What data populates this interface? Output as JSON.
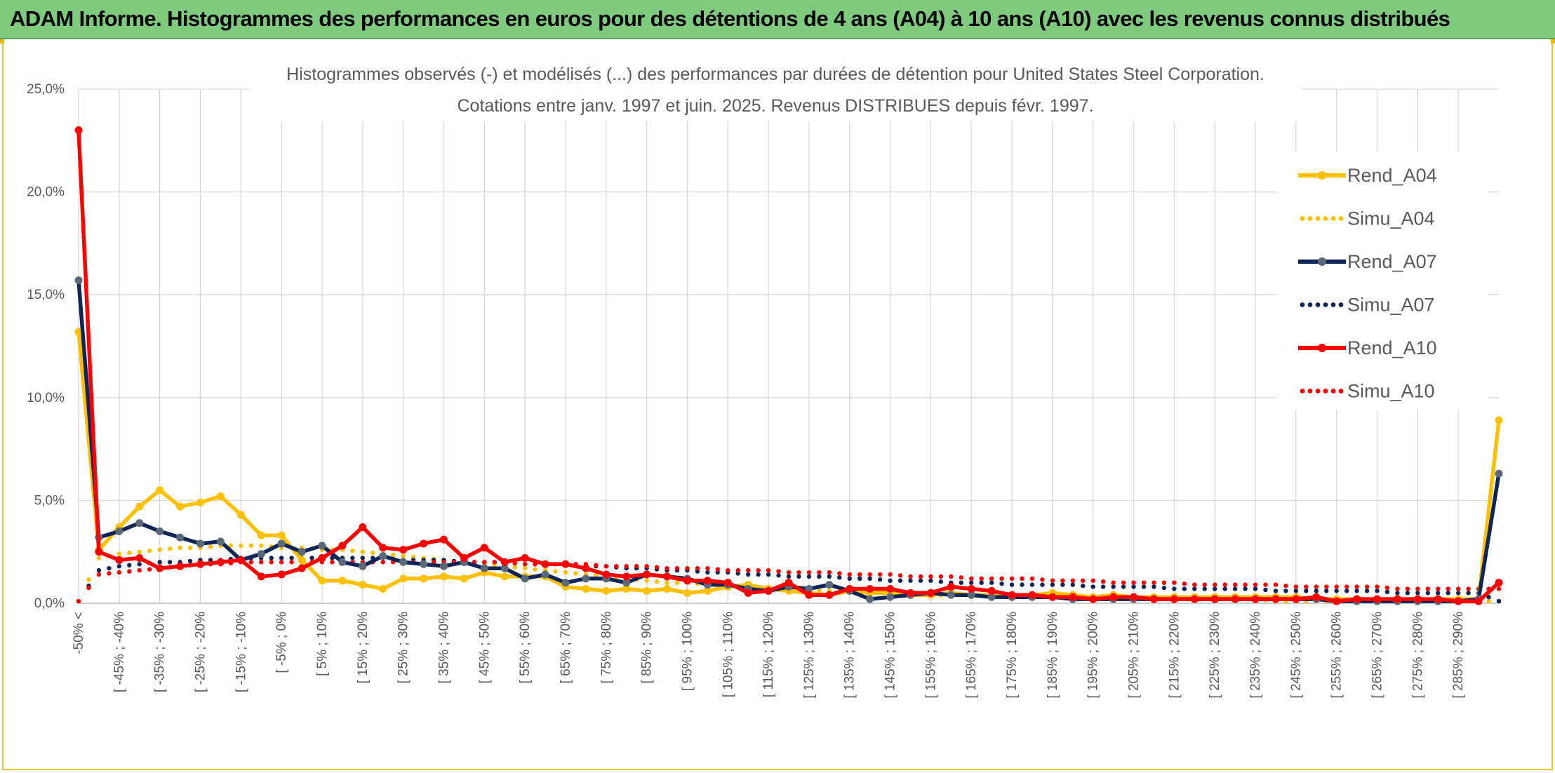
{
  "banner": {
    "title": "ADAM Informe. Histogrammes des performances en euros pour des détentions de 4 ans (A04) à 10 ans (A10) avec les revenus connus distribués"
  },
  "colors": {
    "banner": "#7ecb7e",
    "A04": "#ffc000",
    "A07": "#0f2557",
    "A07_marker": "#5a6877",
    "A10": "#ff0000",
    "grid": "#d9d9d9",
    "frame": "#f2c230"
  },
  "chart_data": {
    "type": "line",
    "title_lines": [
      "Histogrammes observés (-) et modélisés (...) des performances par durées de détention pour United States Steel Corporation.",
      "Cotations entre janv. 1997 et juin. 2025. Revenus DISTRIBUES depuis févr. 1997."
    ],
    "ylim": [
      0,
      25
    ],
    "y_ticks": [
      {
        "value": 0,
        "label": "0,0%"
      },
      {
        "value": 5,
        "label": "5,0%"
      },
      {
        "value": 10,
        "label": "10,0%"
      },
      {
        "value": 15,
        "label": "15,0%"
      },
      {
        "value": 20,
        "label": "20,0%"
      },
      {
        "value": 25,
        "label": "25,0%"
      }
    ],
    "grid": true,
    "legend_position": "right",
    "x_tick_labels": [
      "-50% <",
      "[ -45% ; -40%",
      "[ -35% ; -30%",
      "[ -25% ; -20%",
      "[ -15% ; -10%",
      "[ -5% ; 0%",
      "[ 5% ; 10%",
      "[ 15% ; 20%",
      "[ 25% ; 30%",
      "[ 35% ; 40%",
      "[ 45% ; 50%",
      "[ 55% ; 60%",
      "[ 65% ; 70%",
      "[ 75% ; 80%",
      "[ 85% ; 90%",
      "[ 95% ; 100%",
      "[ 105% ; 110%",
      "[ 115% ; 120%",
      "[ 125% ; 130%",
      "[ 135% ; 140%",
      "[ 145% ; 150%",
      "[ 155% ; 160%",
      "[ 165% ; 170%",
      "[ 175% ; 180%",
      "[ 185% ; 190%",
      "[ 195% ; 200%",
      "[ 205% ; 210%",
      "[ 215% ; 220%",
      "[ 225% ; 230%",
      "[ 235% ; 240%",
      "[ 245% ; 250%",
      "[ 255% ; 260%",
      "[ 265% ; 270%",
      "[ 275% ; 280%",
      "[ 285% ; 290%"
    ],
    "series": [
      {
        "name": "Rend_A04",
        "style": "solid",
        "color": "#ffc000",
        "marker_color": "#ffc000",
        "values": [
          13.2,
          2.6,
          3.7,
          4.7,
          5.5,
          4.7,
          4.9,
          5.2,
          4.3,
          3.3,
          3.3,
          2.1,
          1.1,
          1.1,
          0.9,
          0.7,
          1.2,
          1.2,
          1.3,
          1.2,
          1.5,
          1.3,
          1.3,
          1.3,
          0.8,
          0.7,
          0.6,
          0.7,
          0.6,
          0.7,
          0.5,
          0.6,
          0.8,
          0.9,
          0.7,
          0.6,
          0.5,
          0.4,
          0.6,
          0.5,
          0.5,
          0.4,
          0.4,
          0.5,
          0.4,
          0.4,
          0.4,
          0.4,
          0.5,
          0.4,
          0.3,
          0.4,
          0.3,
          0.3,
          0.3,
          0.3,
          0.3,
          0.3,
          0.3,
          0.3,
          0.3,
          0.2,
          0.2,
          0.2,
          0.2,
          0.2,
          0.2,
          0.2,
          0.2,
          0.2,
          8.9
        ]
      },
      {
        "name": "Simu_A04",
        "style": "dotted",
        "color": "#ffc000",
        "marker_color": "#ffc000",
        "values": [
          0.1,
          2.2,
          2.4,
          2.5,
          2.6,
          2.7,
          2.7,
          2.8,
          2.8,
          2.8,
          2.7,
          2.7,
          2.6,
          2.6,
          2.5,
          2.4,
          2.3,
          2.2,
          2.1,
          2.0,
          1.9,
          1.8,
          1.7,
          1.6,
          1.5,
          1.4,
          1.3,
          1.2,
          1.1,
          1.0,
          1.0,
          0.9,
          0.8,
          0.8,
          0.7,
          0.7,
          0.6,
          0.6,
          0.6,
          0.5,
          0.5,
          0.5,
          0.4,
          0.4,
          0.4,
          0.4,
          0.3,
          0.3,
          0.3,
          0.3,
          0.3,
          0.2,
          0.2,
          0.2,
          0.2,
          0.2,
          0.2,
          0.2,
          0.2,
          0.1,
          0.1,
          0.1,
          0.1,
          0.1,
          0.1,
          0.1,
          0.1,
          0.1,
          0.1,
          0.1,
          0.1
        ]
      },
      {
        "name": "Rend_A07",
        "style": "solid",
        "color": "#0f2557",
        "marker_color": "#5a6877",
        "values": [
          15.7,
          3.2,
          3.5,
          3.9,
          3.5,
          3.2,
          2.9,
          3.0,
          2.1,
          2.4,
          2.9,
          2.5,
          2.8,
          2.0,
          1.8,
          2.3,
          2.0,
          1.9,
          1.8,
          2.0,
          1.7,
          1.7,
          1.2,
          1.4,
          1.0,
          1.2,
          1.2,
          1.0,
          1.4,
          1.3,
          1.2,
          0.9,
          0.9,
          0.7,
          0.6,
          0.8,
          0.7,
          0.9,
          0.6,
          0.2,
          0.3,
          0.4,
          0.5,
          0.4,
          0.4,
          0.3,
          0.3,
          0.3,
          0.3,
          0.2,
          0.2,
          0.2,
          0.2,
          0.2,
          0.2,
          0.2,
          0.2,
          0.2,
          0.2,
          0.2,
          0.2,
          0.2,
          0.1,
          0.1,
          0.1,
          0.1,
          0.1,
          0.1,
          0.1,
          0.2,
          6.3
        ]
      },
      {
        "name": "Simu_A07",
        "style": "dotted",
        "color": "#0f2557",
        "marker_color": "#0f2557",
        "values": [
          0.1,
          1.6,
          1.8,
          1.9,
          2.0,
          2.0,
          2.1,
          2.1,
          2.2,
          2.2,
          2.2,
          2.2,
          2.2,
          2.2,
          2.2,
          2.2,
          2.1,
          2.1,
          2.1,
          2.0,
          2.0,
          2.0,
          1.9,
          1.9,
          1.9,
          1.8,
          1.8,
          1.7,
          1.7,
          1.6,
          1.6,
          1.5,
          1.5,
          1.4,
          1.4,
          1.3,
          1.3,
          1.3,
          1.2,
          1.2,
          1.1,
          1.1,
          1.1,
          1.0,
          1.0,
          1.0,
          0.9,
          0.9,
          0.9,
          0.9,
          0.8,
          0.8,
          0.8,
          0.8,
          0.7,
          0.7,
          0.7,
          0.7,
          0.7,
          0.6,
          0.6,
          0.6,
          0.6,
          0.6,
          0.6,
          0.5,
          0.5,
          0.5,
          0.5,
          0.5,
          0.1
        ]
      },
      {
        "name": "Rend_A10",
        "style": "solid",
        "color": "#ff0000",
        "marker_color": "#ff0000",
        "values": [
          23.0,
          2.5,
          2.1,
          2.2,
          1.7,
          1.8,
          1.9,
          2.0,
          2.1,
          1.3,
          1.4,
          1.7,
          2.2,
          2.8,
          3.7,
          2.7,
          2.6,
          2.9,
          3.1,
          2.2,
          2.7,
          2.0,
          2.2,
          1.9,
          1.9,
          1.7,
          1.4,
          1.3,
          1.4,
          1.3,
          1.1,
          1.1,
          1.0,
          0.5,
          0.6,
          1.0,
          0.4,
          0.4,
          0.7,
          0.7,
          0.7,
          0.5,
          0.5,
          0.8,
          0.7,
          0.6,
          0.4,
          0.4,
          0.3,
          0.3,
          0.2,
          0.3,
          0.3,
          0.2,
          0.2,
          0.2,
          0.2,
          0.2,
          0.2,
          0.2,
          0.2,
          0.3,
          0.1,
          0.2,
          0.2,
          0.2,
          0.2,
          0.2,
          0.1,
          0.1,
          1.0
        ]
      },
      {
        "name": "Simu_A10",
        "style": "dotted",
        "color": "#ff0000",
        "marker_color": "#ff0000",
        "values": [
          0.1,
          1.4,
          1.5,
          1.6,
          1.7,
          1.8,
          1.9,
          1.9,
          2.0,
          2.0,
          2.0,
          2.0,
          2.0,
          2.0,
          2.0,
          2.0,
          2.0,
          2.0,
          2.0,
          2.0,
          2.0,
          2.0,
          1.9,
          1.9,
          1.9,
          1.9,
          1.8,
          1.8,
          1.8,
          1.7,
          1.7,
          1.7,
          1.6,
          1.6,
          1.6,
          1.5,
          1.5,
          1.5,
          1.4,
          1.4,
          1.4,
          1.3,
          1.3,
          1.3,
          1.2,
          1.2,
          1.2,
          1.2,
          1.1,
          1.1,
          1.1,
          1.0,
          1.0,
          1.0,
          1.0,
          0.9,
          0.9,
          0.9,
          0.9,
          0.9,
          0.8,
          0.8,
          0.8,
          0.8,
          0.8,
          0.7,
          0.7,
          0.7,
          0.7,
          0.7,
          0.7
        ]
      }
    ]
  }
}
